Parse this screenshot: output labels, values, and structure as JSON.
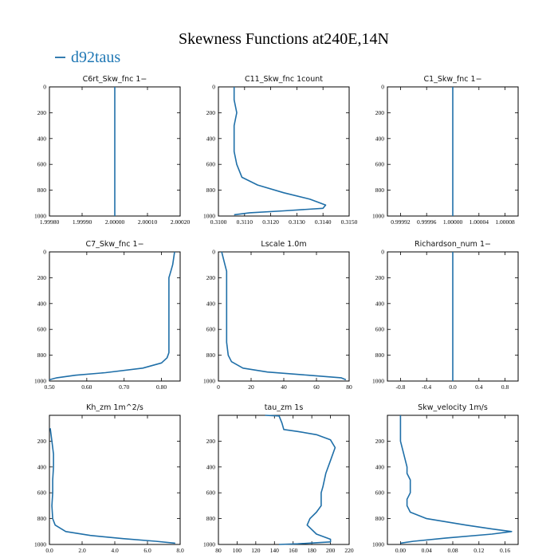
{
  "figure": {
    "title": "Skewness Functions at240E,14N",
    "legend": "d92taus",
    "legend_color": "#1f6fa8"
  },
  "chart_data": [
    {
      "type": "line",
      "title": "C6rt_Skw_fnc   1−",
      "xlim": [
        1.9998,
        2.0002
      ],
      "ylim": [
        1000,
        0
      ],
      "xticks": [
        "1.99980",
        "1.99990",
        "2.00000",
        "2.00010",
        "2.00020"
      ],
      "yticks": [
        "0",
        "200",
        "400",
        "600",
        "800",
        "1000"
      ],
      "series": [
        {
          "x": [
            2.0,
            2.0
          ],
          "y": [
            0,
            1000
          ]
        }
      ]
    },
    {
      "type": "line",
      "title": "C11_Skw_fnc   1count",
      "xlim": [
        0.31,
        0.315
      ],
      "ylim": [
        1000,
        0
      ],
      "xticks": [
        "0.3100",
        "0.3110",
        "0.3120",
        "0.3130",
        "0.3140",
        "0.3150"
      ],
      "yticks": [
        "0",
        "200",
        "400",
        "600",
        "800",
        "1000"
      ],
      "series": [
        {
          "x": [
            0.3106,
            0.3106,
            0.3107,
            0.3106,
            0.3106,
            0.3106,
            0.3107,
            0.3109,
            0.3115,
            0.3125,
            0.3135,
            0.3141,
            0.314,
            0.3125,
            0.3112,
            0.3106
          ],
          "y": [
            0,
            100,
            200,
            300,
            400,
            500,
            600,
            700,
            760,
            820,
            870,
            915,
            940,
            960,
            975,
            990
          ]
        }
      ]
    },
    {
      "type": "line",
      "title": "C1_Skw_fnc   1−",
      "xlim": [
        0.9999,
        1.0001
      ],
      "ylim": [
        1000,
        0
      ],
      "xticks": [
        "0.99992",
        "0.99996",
        "1.00000",
        "1.00004",
        "1.00008"
      ],
      "yticks": [
        "0",
        "200",
        "400",
        "600",
        "800",
        "1000"
      ],
      "series": [
        {
          "x": [
            1.0,
            1.0
          ],
          "y": [
            0,
            1000
          ]
        }
      ]
    },
    {
      "type": "line",
      "title": "C7_Skw_fnc   1−",
      "xlim": [
        0.5,
        0.85
      ],
      "ylim": [
        1000,
        0
      ],
      "xticks": [
        "0.50",
        "0.60",
        "0.70",
        "0.80"
      ],
      "yticks": [
        "0",
        "200",
        "400",
        "600",
        "800",
        "1000"
      ],
      "series": [
        {
          "x": [
            0.835,
            0.83,
            0.825,
            0.82,
            0.82,
            0.82,
            0.82,
            0.82,
            0.82,
            0.82,
            0.815,
            0.8,
            0.75,
            0.65,
            0.57,
            0.52,
            0.5
          ],
          "y": [
            0,
            100,
            150,
            200,
            300,
            400,
            500,
            600,
            700,
            780,
            820,
            860,
            900,
            935,
            955,
            975,
            990
          ]
        }
      ]
    },
    {
      "type": "line",
      "title": "Lscale   1.0m",
      "xlim": [
        0,
        80
      ],
      "ylim": [
        1000,
        0
      ],
      "xticks": [
        "0",
        "20",
        "40",
        "60",
        "80"
      ],
      "yticks": [
        "0",
        "200",
        "400",
        "600",
        "800",
        "1000"
      ],
      "series": [
        {
          "x": [
            2,
            4,
            5,
            5,
            5,
            5,
            5,
            5,
            5,
            6,
            8,
            15,
            30,
            55,
            75,
            78
          ],
          "y": [
            0,
            100,
            150,
            200,
            300,
            400,
            500,
            600,
            700,
            800,
            850,
            900,
            930,
            955,
            975,
            990
          ]
        }
      ]
    },
    {
      "type": "line",
      "title": "Richardson_num   1−",
      "xlim": [
        -1,
        1
      ],
      "ylim": [
        1000,
        0
      ],
      "xticks": [
        "-0.8",
        "-0.4",
        "0.0",
        "0.4",
        "0.8"
      ],
      "yticks": [
        "0",
        "200",
        "400",
        "600",
        "800",
        "1000"
      ],
      "series": [
        {
          "x": [
            0,
            0
          ],
          "y": [
            0,
            1000
          ]
        }
      ]
    },
    {
      "type": "line",
      "title": "Kh_zm   1m^2/s",
      "xlim": [
        0,
        8
      ],
      "ylim": [
        1000,
        0
      ],
      "xticks": [
        "0.0",
        "2.0",
        "4.0",
        "6.0",
        "8.0"
      ],
      "yticks": [
        "200",
        "400",
        "600",
        "800",
        "1000"
      ],
      "series": [
        {
          "x": [
            0.05,
            0.15,
            0.25,
            0.25,
            0.2,
            0.2,
            0.15,
            0.2,
            0.35,
            1.0,
            2.5,
            4.5,
            6.5,
            7.7
          ],
          "y": [
            100,
            200,
            300,
            400,
            500,
            600,
            700,
            800,
            850,
            900,
            930,
            955,
            975,
            990
          ]
        }
      ]
    },
    {
      "type": "line",
      "title": "tau_zm   1s",
      "xlim": [
        80,
        220
      ],
      "ylim": [
        1000,
        0
      ],
      "xticks": [
        "80",
        "100",
        "120",
        "140",
        "160",
        "180",
        "200",
        "220"
      ],
      "yticks": [
        "200",
        "400",
        "600",
        "800",
        "1000"
      ],
      "series": [
        {
          "x": [
            130,
            145,
            148,
            150,
            165,
            185,
            200,
            205,
            200,
            195,
            192,
            190,
            190,
            185,
            178,
            175,
            185,
            200,
            200,
            165,
            145
          ],
          "y": [
            0,
            5,
            60,
            110,
            125,
            150,
            190,
            250,
            350,
            450,
            550,
            600,
            700,
            750,
            800,
            850,
            920,
            960,
            980,
            995,
            1000
          ]
        }
      ]
    },
    {
      "type": "line",
      "title": "Skw_velocity   1m/s",
      "xlim": [
        -0.02,
        0.18
      ],
      "ylim": [
        1000,
        0
      ],
      "xticks": [
        "0.00",
        "0.04",
        "0.08",
        "0.12",
        "0.16"
      ],
      "yticks": [
        "200",
        "400",
        "600",
        "800",
        "1000"
      ],
      "series": [
        {
          "x": [
            0.0,
            0.0,
            0.0,
            0.005,
            0.01,
            0.01,
            0.015,
            0.015,
            0.015,
            0.01,
            0.01,
            0.015,
            0.04,
            0.1,
            0.14,
            0.17,
            0.14,
            0.07,
            0.02,
            0.0
          ],
          "y": [
            0,
            100,
            200,
            300,
            400,
            450,
            500,
            550,
            600,
            650,
            700,
            750,
            800,
            850,
            880,
            900,
            920,
            950,
            975,
            990
          ]
        }
      ]
    }
  ]
}
